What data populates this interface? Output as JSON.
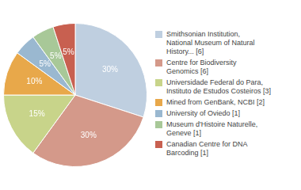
{
  "chart_data": {
    "type": "pie",
    "categories": [
      "Smithsonian Institution,\nNational Museum of Natural\nHistory... [6]",
      "Centre for Biodiversity\nGenomics [6]",
      "Universidade Federal do Para,\nInstituto de Estudos Costeiros [3]",
      "Mined from GenBank, NCBI [2]",
      "University of Oviedo [1]",
      "Museum d'Histoire Naturelle,\nGeneve [1]",
      "Canadian Centre for DNA\nBarcoding [1]"
    ],
    "values": [
      30,
      30,
      15,
      10,
      5,
      5,
      5
    ],
    "value_labels": [
      "30%",
      "30%",
      "15%",
      "10%",
      "5%",
      "5%",
      "5%"
    ],
    "colors": [
      "#bfcfe0",
      "#d4998a",
      "#c8d48a",
      "#e8a84a",
      "#9ab8d0",
      "#a8c898",
      "#c86050"
    ],
    "data_labels": true,
    "legend": "right"
  }
}
